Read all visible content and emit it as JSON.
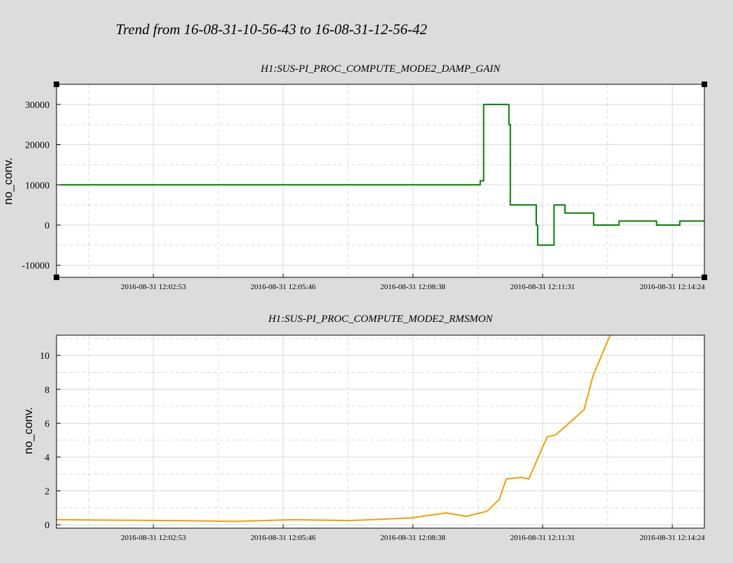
{
  "page_title": "Trend from 16-08-31-10-56-43 to 16-08-31-12-56-42",
  "chart_data": [
    {
      "type": "line",
      "title": "H1:SUS-PI_PROC_COMPUTE_MODE2_DAMP_GAIN",
      "ylabel": "no_conv.",
      "xlabel": "",
      "ylim": [
        -13000,
        35000
      ],
      "yticks": [
        -10000,
        0,
        10000,
        20000,
        30000
      ],
      "xticks": [
        "2016-08-31 12:02:53",
        "2016-08-31 12:05:46",
        "2016-08-31 12:08:38",
        "2016-08-31 12:11:31",
        "2016-08-31 12:14:24"
      ],
      "grid": true,
      "color": "#008000",
      "series": [
        {
          "x": [
            "2016-08-31 12:00:05",
            "2016-08-31 12:10:20",
            "2016-08-31 12:10:20",
            "2016-08-31 12:10:25",
            "2016-08-31 12:10:25",
            "2016-08-31 12:11:02",
            "2016-08-31 12:11:02",
            "2016-08-31 12:11:04",
            "2016-08-31 12:11:04",
            "2016-08-31 12:11:42",
            "2016-08-31 12:11:42",
            "2016-08-31 12:11:44",
            "2016-08-31 12:11:44",
            "2016-08-31 12:12:08",
            "2016-08-31 12:12:08",
            "2016-08-31 12:12:24",
            "2016-08-31 12:12:24",
            "2016-08-31 12:13:06",
            "2016-08-31 12:13:06",
            "2016-08-31 12:13:43",
            "2016-08-31 12:13:43",
            "2016-08-31 12:14:38",
            "2016-08-31 12:14:38",
            "2016-08-31 12:15:12",
            "2016-08-31 12:15:12",
            "2016-08-31 12:15:48"
          ],
          "y": [
            10000,
            10000,
            11000,
            11000,
            30000,
            30000,
            25000,
            25000,
            5000,
            5000,
            0,
            0,
            -5000,
            -5000,
            5000,
            5000,
            3000,
            3000,
            0,
            0,
            1000,
            1000,
            0,
            0,
            1000,
            1000
          ]
        }
      ]
    },
    {
      "type": "line",
      "title": "H1:SUS-PI_PROC_COMPUTE_MODE2_RMSMON",
      "ylabel": "no_conv.",
      "xlabel": "",
      "ylim": [
        -0.2,
        11.2
      ],
      "yticks": [
        0,
        2,
        4,
        6,
        8,
        10
      ],
      "xticks": [
        "2016-08-31 12:02:53",
        "2016-08-31 12:05:46",
        "2016-08-31 12:08:38",
        "2016-08-31 12:11:31",
        "2016-08-31 12:14:24"
      ],
      "grid": true,
      "color": "#f0a000",
      "series": [
        {
          "x": [
            "2016-08-31 12:00:00",
            "2016-08-31 12:02:53",
            "2016-08-31 12:04:20",
            "2016-08-31 12:05:46",
            "2016-08-31 12:07:10",
            "2016-08-31 12:08:38",
            "2016-08-31 12:09:30",
            "2016-08-31 12:10:00",
            "2016-08-31 12:10:30",
            "2016-08-31 12:10:48",
            "2016-08-31 12:10:58",
            "2016-08-31 12:11:20",
            "2016-08-31 12:11:31",
            "2016-08-31 12:11:45",
            "2016-08-31 12:11:58",
            "2016-08-31 12:12:10",
            "2016-08-31 12:12:30",
            "2016-08-31 12:12:52",
            "2016-08-31 12:13:05",
            "2016-08-31 12:13:30"
          ],
          "y": [
            0.3,
            0.25,
            0.2,
            0.3,
            0.25,
            0.4,
            0.7,
            0.5,
            0.8,
            1.5,
            2.7,
            2.8,
            2.7,
            4.0,
            5.2,
            5.3,
            6.0,
            6.8,
            8.8,
            11.2
          ]
        }
      ]
    }
  ]
}
